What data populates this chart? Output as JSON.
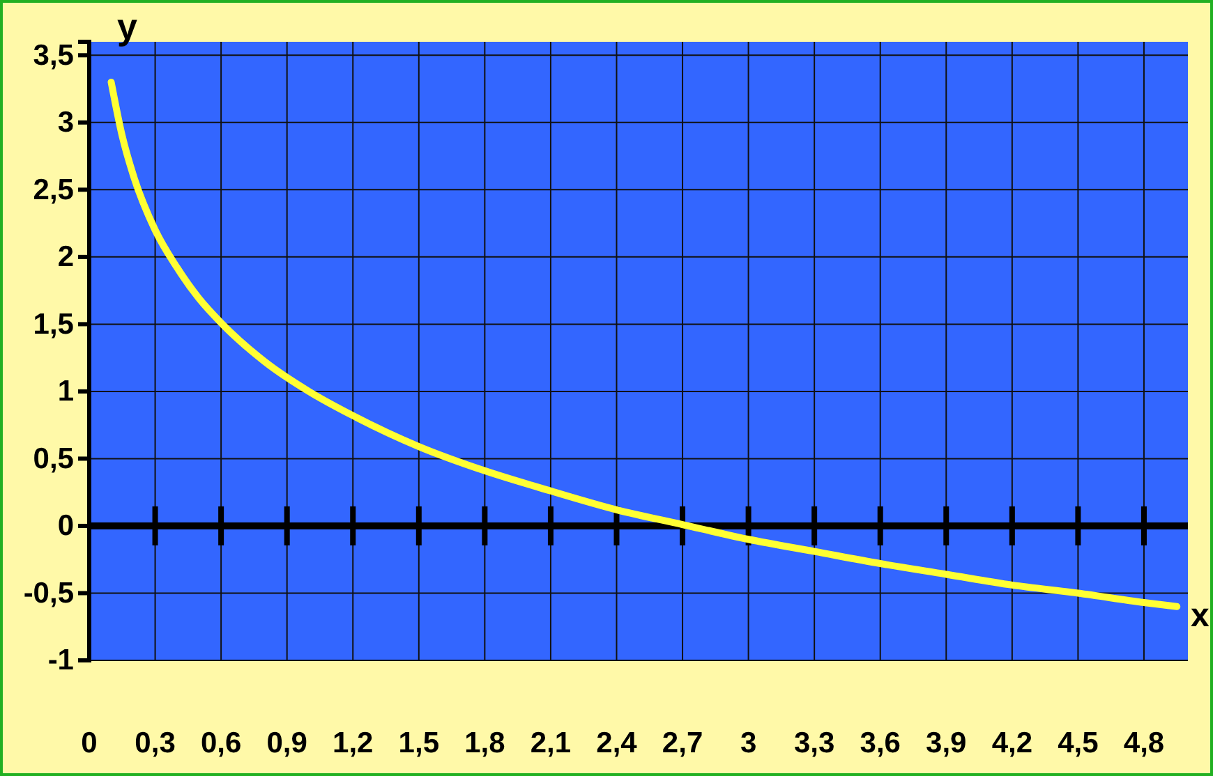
{
  "chart_data": {
    "type": "line",
    "xlabel": "x",
    "ylabel": "y",
    "x": [
      0.1,
      0.15,
      0.2,
      0.3,
      0.4,
      0.5,
      0.6,
      0.8,
      1.0,
      1.2,
      1.5,
      1.8,
      2.1,
      2.4,
      2.7,
      3.0,
      3.3,
      3.6,
      3.9,
      4.2,
      4.5,
      4.8,
      4.95
    ],
    "series": [
      {
        "color": "#ffff33",
        "values": [
          3.3,
          2.9,
          2.61,
          2.2,
          1.92,
          1.69,
          1.51,
          1.22,
          1.0,
          0.82,
          0.59,
          0.41,
          0.26,
          0.12,
          0.01,
          -0.1,
          -0.19,
          -0.28,
          -0.36,
          -0.44,
          -0.5,
          -0.57,
          -0.6
        ]
      }
    ],
    "xlim": [
      0,
      5
    ],
    "ylim": [
      -1,
      3.6
    ],
    "xticks": [
      0,
      {
        "value": 0.3,
        "label": "0,3"
      },
      {
        "value": 0.6,
        "label": "0,6"
      },
      {
        "value": 0.9,
        "label": "0,9"
      },
      {
        "value": 1.2,
        "label": "1,2"
      },
      {
        "value": 1.5,
        "label": "1,5"
      },
      {
        "value": 1.8,
        "label": "1,8"
      },
      {
        "value": 2.1,
        "label": "2,1"
      },
      {
        "value": 2.4,
        "label": "2,4"
      },
      {
        "value": 2.7,
        "label": "2,7"
      },
      3,
      {
        "value": 3.3,
        "label": "3,3"
      },
      {
        "value": 3.6,
        "label": "3,6"
      },
      {
        "value": 3.9,
        "label": "3,9"
      },
      {
        "value": 4.2,
        "label": "4,2"
      },
      {
        "value": 4.5,
        "label": "4,5"
      },
      {
        "value": 4.8,
        "label": "4,8"
      }
    ],
    "yticks": [
      -1,
      {
        "value": -0.5,
        "label": "-0,5"
      },
      0,
      {
        "value": 0.5,
        "label": "0,5"
      },
      1,
      {
        "value": 1.5,
        "label": "1,5"
      },
      2,
      {
        "value": 2.5,
        "label": "2,5"
      },
      3,
      {
        "value": 3.5,
        "label": "3,5"
      }
    ],
    "grid": true,
    "marker": "none",
    "line_style": "solid"
  }
}
